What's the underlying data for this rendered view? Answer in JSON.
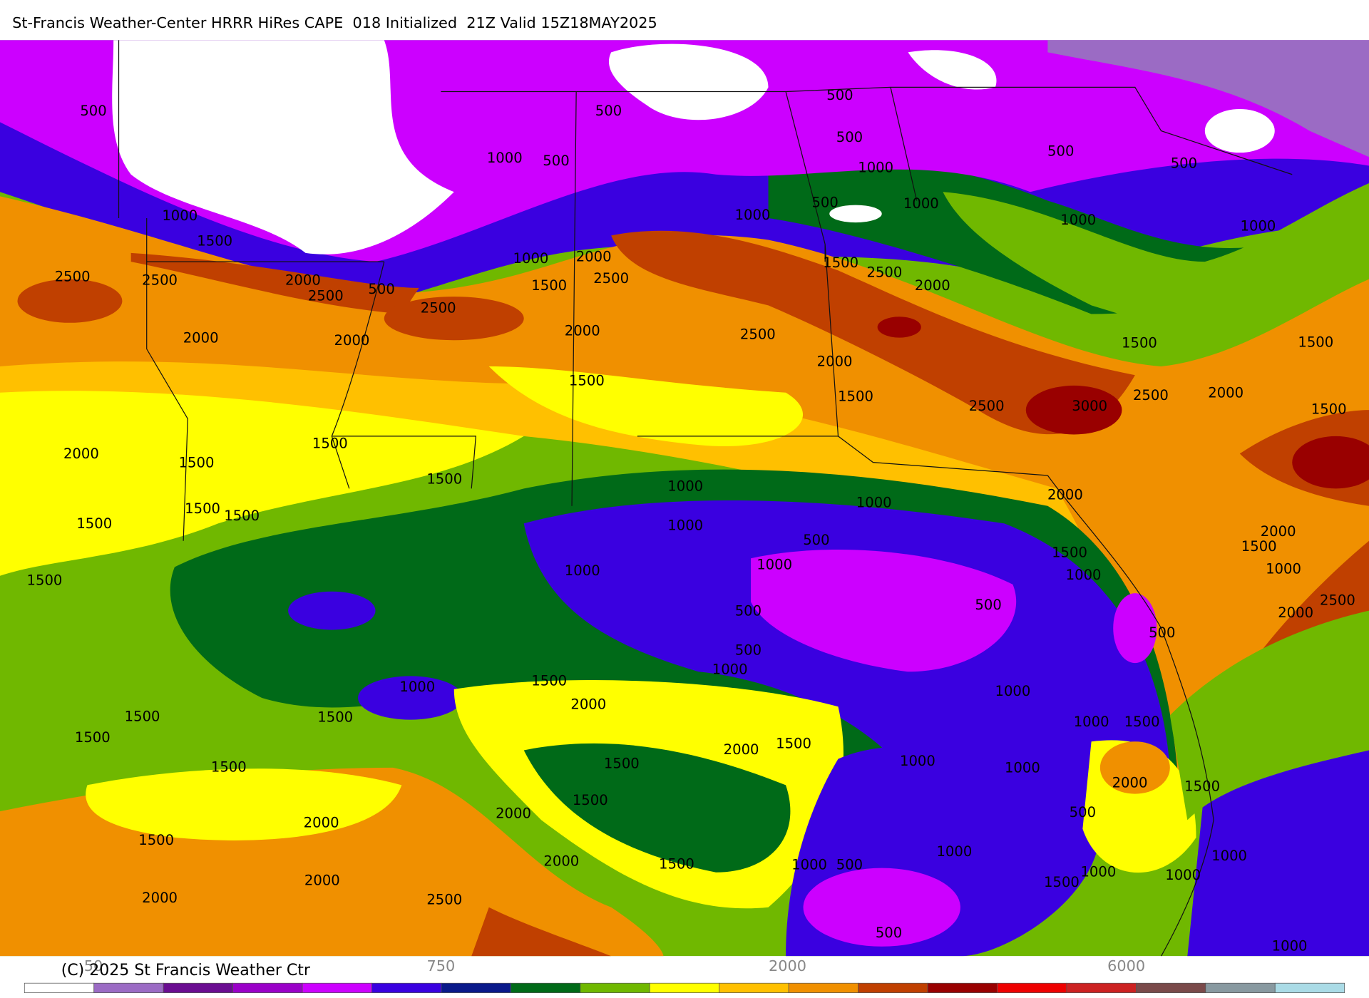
{
  "header": {
    "title": "St-Francis Weather-Center HRRR HiRes CAPE  018 Initialized  21Z Valid 15Z18MAY2025"
  },
  "map": {
    "contour_labels": [
      "500",
      "500",
      "500",
      "500",
      "1000",
      "500",
      "500",
      "500",
      "1000",
      "500",
      "1000",
      "1000",
      "1000",
      "1000",
      "1000",
      "1500",
      "1000",
      "2000",
      "2500",
      "1500",
      "2500",
      "2000",
      "2500",
      "2500",
      "2000",
      "2500",
      "500",
      "1500",
      "2500",
      "2000",
      "2500",
      "2000",
      "2000",
      "1500",
      "1500",
      "2000",
      "1500",
      "1500",
      "2500",
      "3000",
      "2500",
      "2000",
      "1500",
      "1500",
      "2000",
      "1500",
      "1500",
      "1000",
      "1000",
      "2000",
      "1500",
      "1500",
      "1500",
      "1000",
      "500",
      "2000",
      "1500",
      "1500",
      "1500",
      "1000",
      "1000",
      "1000",
      "1000",
      "2500",
      "500",
      "500",
      "2000",
      "500",
      "500",
      "1000",
      "1500",
      "1000",
      "2000",
      "1000",
      "1500",
      "1500",
      "1000",
      "1500",
      "1500",
      "2000",
      "1500",
      "1000",
      "1500",
      "1500",
      "1000",
      "2000",
      "1500",
      "1500",
      "2000",
      "500",
      "2000",
      "1500",
      "1000",
      "2000",
      "1500",
      "1000",
      "500",
      "1000",
      "1000",
      "1000",
      "2000",
      "2000",
      "2500",
      "1500",
      "500",
      "1000"
    ]
  },
  "colorbar": {
    "labels": [
      "50",
      "750",
      "2000",
      "6000"
    ]
  },
  "footer": {
    "copyright": "(C) 2025 St Francis Weather Ctr"
  }
}
